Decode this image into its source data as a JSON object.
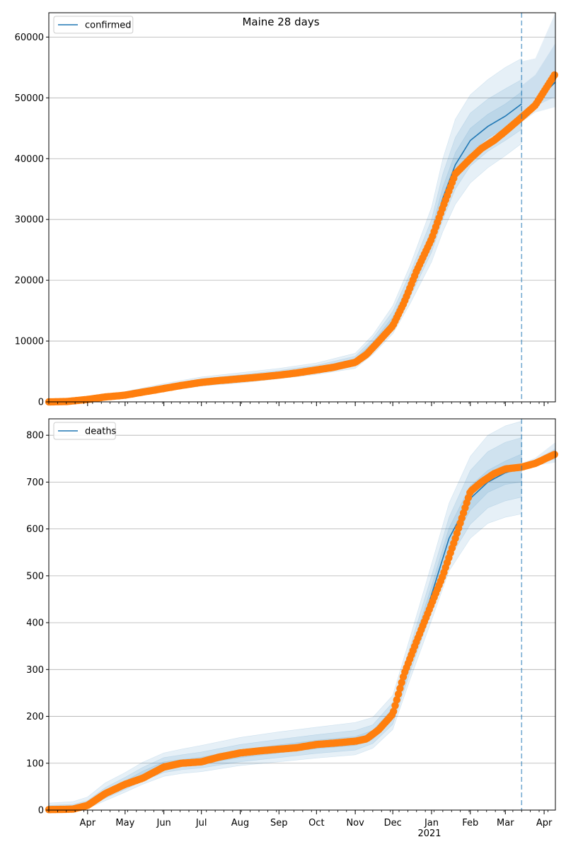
{
  "figure": {
    "title": "Maine 28 days"
  },
  "colors": {
    "model": "#1f77b4",
    "observed": "#ff7f0e",
    "band": "#1f77b4",
    "grid": "#b0b0b0"
  },
  "x_axis": {
    "start": "2020-03-01",
    "end": "2021-04-10",
    "forecast_start": "2021-03-14",
    "ticks": [
      {
        "date": "2020-04-01",
        "label": "Apr"
      },
      {
        "date": "2020-05-01",
        "label": "May"
      },
      {
        "date": "2020-06-01",
        "label": "Jun"
      },
      {
        "date": "2020-07-01",
        "label": "Jul"
      },
      {
        "date": "2020-08-01",
        "label": "Aug"
      },
      {
        "date": "2020-09-01",
        "label": "Sep"
      },
      {
        "date": "2020-10-01",
        "label": "Oct"
      },
      {
        "date": "2020-11-01",
        "label": "Nov"
      },
      {
        "date": "2020-12-01",
        "label": "Dec"
      },
      {
        "date": "2021-01-01",
        "label": "Jan"
      },
      {
        "date": "2021-02-01",
        "label": "Feb"
      },
      {
        "date": "2021-03-01",
        "label": "Mar"
      },
      {
        "date": "2021-04-01",
        "label": "Apr"
      }
    ],
    "year_label": "2021"
  },
  "chart_data": [
    {
      "type": "line",
      "title": "Maine 28 days",
      "legend": {
        "label": "confirmed",
        "position": "top-left"
      },
      "ylim": [
        0,
        64000
      ],
      "yticks": [
        0,
        10000,
        20000,
        30000,
        40000,
        50000,
        60000
      ],
      "grid": true,
      "model": {
        "x": [
          "2020-03-01",
          "2020-04-01",
          "2020-05-01",
          "2020-06-01",
          "2020-07-01",
          "2020-08-01",
          "2020-09-01",
          "2020-10-01",
          "2020-11-01",
          "2020-11-15",
          "2020-12-01",
          "2020-12-15",
          "2021-01-01",
          "2021-01-10",
          "2021-01-20",
          "2021-02-01",
          "2021-02-15",
          "2021-03-01",
          "2021-03-14"
        ],
        "y": [
          0,
          300,
          1200,
          2300,
          3300,
          3900,
          4600,
          5400,
          6700,
          9300,
          13300,
          19000,
          27000,
          33500,
          39000,
          43000,
          45300,
          47000,
          49000
        ]
      },
      "bands": [
        {
          "lower": [
            0,
            150,
            800,
            1700,
            2600,
            3100,
            3800,
            4500,
            5500,
            7800,
            11200,
            16200,
            23000,
            28000,
            32500,
            36000,
            38500,
            40500,
            42500
          ],
          "upper": [
            0,
            500,
            1700,
            3000,
            4100,
            4800,
            5500,
            6400,
            8000,
            11000,
            15800,
            22500,
            32000,
            40000,
            46500,
            50500,
            53000,
            55000,
            56500
          ]
        },
        {
          "lower": [
            0,
            200,
            900,
            1900,
            2850,
            3400,
            4100,
            4850,
            5950,
            8400,
            12000,
            17300,
            24600,
            30000,
            35000,
            38800,
            41200,
            43000,
            44800
          ],
          "upper": [
            0,
            420,
            1550,
            2750,
            3800,
            4450,
            5150,
            6000,
            7500,
            10400,
            14900,
            21200,
            30000,
            37500,
            43500,
            47500,
            49800,
            51500,
            53000
          ]
        },
        {
          "lower": [
            0,
            250,
            1050,
            2100,
            3050,
            3650,
            4350,
            5150,
            6300,
            8850,
            12650,
            18200,
            25800,
            31800,
            37000,
            41000,
            43400,
            45100,
            47000
          ],
          "upper": [
            0,
            360,
            1380,
            2500,
            3550,
            4150,
            4850,
            5650,
            7100,
            9800,
            14000,
            19900,
            28300,
            35300,
            41000,
            45000,
            47300,
            49000,
            51000
          ]
        }
      ],
      "forecast_bands": {
        "x": [
          "2021-03-14",
          "2021-03-25",
          "2021-04-10"
        ],
        "lower": [
          46000,
          47600,
          48500
        ],
        "upper": [
          56000,
          56500,
          64000
        ],
        "inner_lower": [
          46800,
          48600,
          50200
        ],
        "inner_upper": [
          52000,
          53800,
          59000
        ]
      },
      "forecast_line": {
        "x": [
          "2021-03-14",
          "2021-03-25",
          "2021-04-10"
        ],
        "y": [
          47200,
          49300,
          52600
        ]
      },
      "observed": {
        "x": [
          "2020-03-01",
          "2020-03-15",
          "2020-04-01",
          "2020-04-15",
          "2020-05-01",
          "2020-05-15",
          "2020-06-01",
          "2020-06-15",
          "2020-07-01",
          "2020-07-15",
          "2020-08-01",
          "2020-08-15",
          "2020-09-01",
          "2020-09-15",
          "2020-10-01",
          "2020-10-15",
          "2020-11-01",
          "2020-11-10",
          "2020-11-20",
          "2020-12-01",
          "2020-12-10",
          "2020-12-20",
          "2021-01-01",
          "2021-01-10",
          "2021-01-20",
          "2021-02-01",
          "2021-02-10",
          "2021-02-20",
          "2021-03-01",
          "2021-03-14",
          "2021-03-25",
          "2021-04-10"
        ],
        "y": [
          0,
          50,
          400,
          800,
          1100,
          1600,
          2200,
          2700,
          3200,
          3500,
          3800,
          4050,
          4400,
          4750,
          5250,
          5700,
          6500,
          7800,
          10000,
          12500,
          16300,
          21500,
          26800,
          32000,
          37500,
          40000,
          41700,
          43000,
          44500,
          46800,
          48800,
          54000
        ]
      }
    },
    {
      "type": "line",
      "legend": {
        "label": "deaths",
        "position": "top-left"
      },
      "ylim": [
        0,
        835
      ],
      "yticks": [
        0,
        100,
        200,
        300,
        400,
        500,
        600,
        700,
        800
      ],
      "grid": true,
      "model": {
        "x": [
          "2020-03-01",
          "2020-03-20",
          "2020-04-01",
          "2020-04-15",
          "2020-05-01",
          "2020-05-15",
          "2020-06-01",
          "2020-06-15",
          "2020-07-01",
          "2020-08-01",
          "2020-09-01",
          "2020-10-01",
          "2020-11-01",
          "2020-11-15",
          "2020-12-01",
          "2020-12-15",
          "2021-01-01",
          "2021-01-15",
          "2021-02-01",
          "2021-02-15",
          "2021-03-01",
          "2021-03-14"
        ],
        "y": [
          0,
          2,
          10,
          35,
          55,
          75,
          95,
          100,
          105,
          120,
          130,
          140,
          147,
          160,
          205,
          320,
          460,
          580,
          665,
          700,
          720,
          730
        ]
      },
      "bands": [
        {
          "lower": [
            0,
            0,
            3,
            20,
            38,
            55,
            72,
            78,
            82,
            95,
            103,
            111,
            118,
            132,
            172,
            280,
            405,
            510,
            580,
            612,
            625,
            632
          ],
          "upper": [
            15,
            18,
            28,
            58,
            80,
            102,
            122,
            130,
            138,
            155,
            167,
            177,
            187,
            198,
            245,
            370,
            525,
            655,
            755,
            800,
            820,
            830
          ]
        },
        {
          "lower": [
            0,
            0,
            5,
            25,
            44,
            62,
            80,
            86,
            90,
            103,
            112,
            121,
            128,
            142,
            183,
            295,
            425,
            535,
            610,
            645,
            660,
            668
          ],
          "upper": [
            10,
            12,
            20,
            48,
            70,
            91,
            112,
            118,
            124,
            140,
            151,
            161,
            170,
            182,
            230,
            350,
            500,
            625,
            725,
            765,
            785,
            795
          ]
        },
        {
          "lower": [
            0,
            0,
            7,
            29,
            49,
            68,
            87,
            93,
            98,
            112,
            122,
            131,
            138,
            151,
            194,
            306,
            442,
            558,
            640,
            678,
            695,
            700
          ],
          "upper": [
            6,
            8,
            14,
            41,
            62,
            83,
            103,
            108,
            113,
            129,
            139,
            149,
            157,
            170,
            217,
            334,
            478,
            602,
            692,
            725,
            745,
            760
          ]
        }
      ],
      "forecast_bands": {
        "x": [
          "2021-03-14",
          "2021-03-25",
          "2021-04-10"
        ],
        "lower": [
          725,
          735,
          742
        ],
        "upper": [
          740,
          752,
          785
        ],
        "inner_lower": [
          729,
          740,
          748
        ],
        "inner_upper": [
          736,
          747,
          772
        ]
      },
      "forecast_line": {
        "x": [
          "2021-03-14",
          "2021-03-25",
          "2021-04-10"
        ],
        "y": [
          732,
          742,
          755
        ]
      },
      "observed": {
        "x": [
          "2020-03-01",
          "2020-03-20",
          "2020-04-01",
          "2020-04-15",
          "2020-05-01",
          "2020-05-15",
          "2020-06-01",
          "2020-06-15",
          "2020-07-01",
          "2020-07-15",
          "2020-08-01",
          "2020-08-15",
          "2020-09-01",
          "2020-09-15",
          "2020-10-01",
          "2020-10-15",
          "2020-11-01",
          "2020-11-10",
          "2020-11-20",
          "2020-12-01",
          "2020-12-10",
          "2020-12-20",
          "2021-01-01",
          "2021-01-10",
          "2021-01-20",
          "2021-02-01",
          "2021-02-10",
          "2021-02-20",
          "2021-03-01",
          "2021-03-14",
          "2021-03-25",
          "2021-04-10"
        ],
        "y": [
          1,
          2,
          10,
          35,
          55,
          68,
          92,
          100,
          103,
          113,
          122,
          126,
          130,
          133,
          140,
          143,
          147,
          152,
          172,
          205,
          290,
          360,
          440,
          500,
          580,
          680,
          700,
          718,
          728,
          732,
          740,
          760
        ]
      }
    }
  ]
}
